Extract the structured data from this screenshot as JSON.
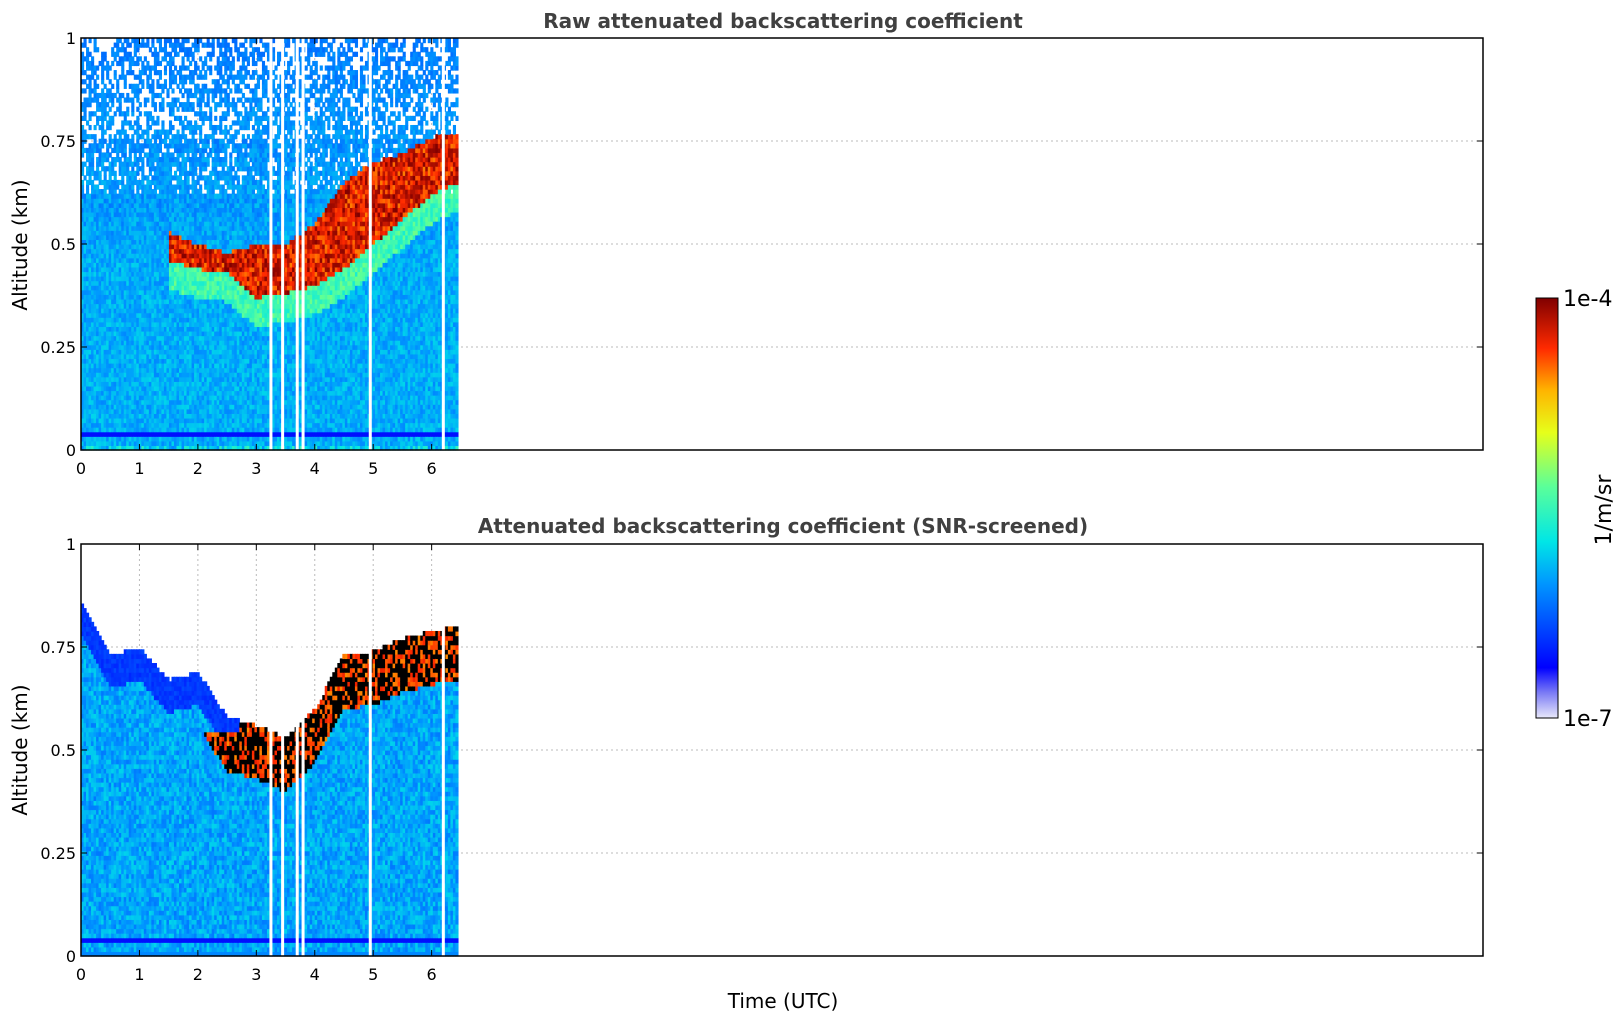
{
  "chart_data": [
    {
      "type": "heatmap",
      "title": "Raw attenuated backscattering coefficient",
      "xlabel": "",
      "ylabel": "Altitude (km)",
      "xlim": [
        0,
        24
      ],
      "ylim": [
        0,
        1
      ],
      "x_ticks": [
        "0",
        "1",
        "2",
        "3",
        "4",
        "5",
        "6"
      ],
      "y_ticks": [
        "0",
        "0.25",
        "0.5",
        "0.75",
        "1"
      ],
      "y_tick_values": [
        0,
        0.25,
        0.5,
        0.75,
        1
      ],
      "grid": true,
      "data_time_range": [
        0,
        6.45
      ],
      "colorscale": "jet (log)",
      "value_range": [
        1e-07,
        0.0001
      ],
      "cloud_layer_top": [
        [
          1.5,
          0.53
        ],
        [
          2.0,
          0.5
        ],
        [
          2.5,
          0.48
        ],
        [
          3.0,
          0.5
        ],
        [
          3.5,
          0.5
        ],
        [
          4.0,
          0.55
        ],
        [
          4.5,
          0.65
        ],
        [
          5.0,
          0.7
        ],
        [
          5.5,
          0.72
        ],
        [
          6.0,
          0.76
        ],
        [
          6.45,
          0.77
        ]
      ],
      "cloud_layer_base": [
        [
          1.5,
          0.46
        ],
        [
          2.0,
          0.44
        ],
        [
          2.5,
          0.43
        ],
        [
          3.0,
          0.37
        ],
        [
          3.5,
          0.38
        ],
        [
          4.0,
          0.4
        ],
        [
          4.5,
          0.44
        ],
        [
          5.0,
          0.5
        ],
        [
          5.5,
          0.56
        ],
        [
          6.0,
          0.62
        ],
        [
          6.45,
          0.65
        ]
      ],
      "gaps_at_time": [
        3.25,
        3.45,
        3.7,
        3.8,
        4.95,
        6.2
      ]
    },
    {
      "type": "heatmap",
      "title": "Attenuated backscattering coefficient (SNR-screened)",
      "xlabel": "Time (UTC)",
      "ylabel": "Altitude (km)",
      "xlim": [
        0,
        24
      ],
      "ylim": [
        0,
        1
      ],
      "x_ticks": [
        "0",
        "1",
        "2",
        "3",
        "4",
        "5",
        "6"
      ],
      "y_ticks": [
        "0",
        "0.25",
        "0.5",
        "0.75",
        "1"
      ],
      "y_tick_values": [
        0,
        0.25,
        0.5,
        0.75,
        1
      ],
      "grid": true,
      "data_time_range": [
        0,
        6.45
      ],
      "colorscale": "jet (log)",
      "value_range": [
        1e-07,
        0.0001
      ],
      "signal_top": [
        [
          0,
          0.86
        ],
        [
          0.5,
          0.73
        ],
        [
          1.0,
          0.75
        ],
        [
          1.5,
          0.67
        ],
        [
          2.0,
          0.69
        ],
        [
          2.5,
          0.58
        ],
        [
          3.0,
          0.56
        ],
        [
          3.5,
          0.53
        ],
        [
          4.0,
          0.6
        ],
        [
          4.5,
          0.73
        ],
        [
          5.0,
          0.74
        ],
        [
          5.5,
          0.77
        ],
        [
          6.0,
          0.79
        ],
        [
          6.45,
          0.8
        ]
      ],
      "gaps_at_time": [
        3.25,
        3.45,
        3.7,
        3.8,
        4.95,
        6.2
      ]
    }
  ],
  "colorbar": {
    "label": "1/m/sr",
    "max_label": "1e-4",
    "min_label": "1e-7"
  }
}
